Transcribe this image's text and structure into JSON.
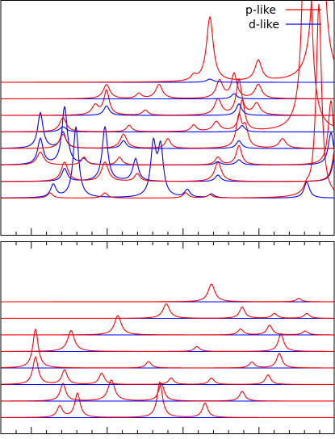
{
  "colors": {
    "p_like": "#ff0000",
    "d_like": "#0000ff",
    "frame": "#000000",
    "background": "#ffffff"
  },
  "chart_data": [
    {
      "type": "line",
      "panel": "top",
      "title": "",
      "xlabel": "",
      "ylabel": "",
      "grid": false,
      "legend": {
        "position": "top-right",
        "entries": [
          "p-like",
          "d-like"
        ]
      },
      "xlim": [
        0,
        415
      ],
      "n_curves": 8,
      "series": [
        {
          "name": "p-like",
          "color": "#ff0000",
          "peaks_per_curve": [
            [
              [
                260,
                1.0,
                5
              ],
              [
                240,
                0.08,
                4
              ],
              [
                320,
                0.32,
                5
              ],
              [
                395,
                8.0,
                4
              ]
            ],
            [
              [
                132,
                0.22,
                5
              ],
              [
                172,
                0.08,
                4
              ],
              [
                197,
                0.22,
                5
              ],
              [
                272,
                0.28,
                5
              ],
              [
                290,
                0.38,
                4
              ],
              [
                320,
                0.22,
                5
              ]
            ],
            [
              [
                118,
                0.15,
                5
              ],
              [
                132,
                0.38,
                4
              ],
              [
                180,
                0.08,
                4
              ],
              [
                270,
                0.25,
                5
              ],
              [
                296,
                0.55,
                4
              ],
              [
                318,
                0.18,
                5
              ]
            ],
            [
              [
                78,
                0.22,
                5
              ],
              [
                160,
                0.1,
                4
              ],
              [
                240,
                0.1,
                4
              ],
              [
                268,
                0.15,
                5
              ],
              [
                300,
                0.48,
                4
              ],
              [
                380,
                6.5,
                4
              ]
            ],
            [
              [
                78,
                0.22,
                5
              ],
              [
                153,
                0.22,
                5
              ],
              [
                208,
                0.15,
                4
              ],
              [
                296,
                0.48,
                4
              ],
              [
                304,
                0.3,
                4
              ],
              [
                350,
                0.15,
                5
              ]
            ],
            [
              [
                50,
                0.2,
                5
              ],
              [
                104,
                0.12,
                4
              ],
              [
                148,
                0.12,
                4
              ],
              [
                270,
                0.12,
                4
              ],
              [
                296,
                0.3,
                4
              ],
              [
                410,
                1.0,
                4
              ]
            ],
            [
              [
                80,
                0.3,
                5
              ],
              [
                130,
                0.3,
                5
              ],
              [
                170,
                0.12,
                4
              ],
              [
                270,
                0.3,
                5
              ],
              [
                415,
                0.5,
                4
              ]
            ],
            [
              [
                62,
                0.08,
                4
              ],
              [
                130,
                0.08,
                4
              ],
              [
                230,
                0.08,
                4
              ],
              [
                260,
                0.05,
                4
              ],
              [
                380,
                0.1,
                4
              ],
              [
                395,
                3.0,
                4
              ]
            ]
          ]
        },
        {
          "name": "d-like",
          "color": "#0000ff",
          "peaks_per_curve": [
            [
              [
                260,
                0.05,
                5
              ]
            ],
            [
              [
                290,
                0.08,
                4
              ]
            ],
            [
              [
                132,
                0.15,
                4
              ],
              [
                296,
                0.18,
                4
              ]
            ],
            [
              [
                78,
                0.08,
                5
              ],
              [
                300,
                0.1,
                4
              ]
            ],
            [
              [
                50,
                0.55,
                4
              ],
              [
                78,
                0.25,
                4
              ],
              [
                153,
                0.12,
                4
              ],
              [
                296,
                0.12,
                4
              ]
            ],
            [
              [
                50,
                0.4,
                4
              ],
              [
                80,
                0.9,
                4
              ],
              [
                104,
                0.08,
                4
              ],
              [
                270,
                0.05,
                4
              ],
              [
                296,
                0.08,
                4
              ],
              [
                410,
                0.5,
                4
              ]
            ],
            [
              [
                80,
                0.2,
                4
              ],
              [
                130,
                0.85,
                4
              ],
              [
                168,
                0.35,
                4
              ],
              [
                270,
                0.1,
                4
              ],
              [
                415,
                0.4,
                4
              ]
            ],
            [
              [
                66,
                0.2,
                4
              ],
              [
                94,
                1.1,
                4
              ],
              [
                190,
                0.8,
                4
              ],
              [
                199,
                0.75,
                4
              ],
              [
                232,
                0.12,
                4
              ],
              [
                262,
                0.06,
                4
              ],
              [
                380,
                0.25,
                4
              ]
            ]
          ]
        }
      ]
    },
    {
      "type": "line",
      "panel": "bottom",
      "title": "",
      "xlabel": "",
      "ylabel": "",
      "grid": false,
      "xlim": [
        0,
        415
      ],
      "n_curves": 8,
      "series": [
        {
          "name": "p-like",
          "color": "#ff0000",
          "peaks_per_curve": [
            [
              [
                262,
                0.55,
                5
              ],
              [
                370,
                0.1,
                4
              ]
            ],
            [
              [
                206,
                0.45,
                5
              ],
              [
                300,
                0.35,
                4
              ],
              [
                340,
                0.15,
                4
              ],
              [
                380,
                0.15,
                4
              ]
            ],
            [
              [
                146,
                0.6,
                5
              ],
              [
                298,
                0.18,
                4
              ],
              [
                334,
                0.3,
                4
              ],
              [
                378,
                0.12,
                4
              ]
            ],
            [
              [
                88,
                0.65,
                5
              ],
              [
                244,
                0.15,
                4
              ],
              [
                348,
                0.55,
                4
              ]
            ],
            [
              [
                44,
                1.2,
                4
              ],
              [
                184,
                0.2,
                4
              ],
              [
                312,
                0.18,
                4
              ],
              [
                346,
                0.45,
                4
              ]
            ],
            [
              [
                44,
                0.85,
                4
              ],
              [
                80,
                0.45,
                4
              ],
              [
                126,
                0.35,
                4
              ],
              [
                212,
                0.2,
                4
              ],
              [
                262,
                0.2,
                4
              ],
              [
                332,
                0.3,
                4
              ]
            ],
            [
              [
                78,
                0.55,
                4
              ],
              [
                138,
                0.65,
                5
              ],
              [
                200,
                0.55,
                4
              ],
              [
                300,
                0.3,
                4
              ]
            ],
            [
              [
                74,
                0.35,
                4
              ],
              [
                96,
                0.75,
                4
              ],
              [
                198,
                1.1,
                4
              ],
              [
                254,
                0.45,
                4
              ]
            ]
          ]
        },
        {
          "name": "d-like",
          "color": "#0000ff",
          "peaks_per_curve": [
            [],
            [],
            [],
            [],
            [],
            [],
            [],
            []
          ]
        }
      ]
    }
  ]
}
